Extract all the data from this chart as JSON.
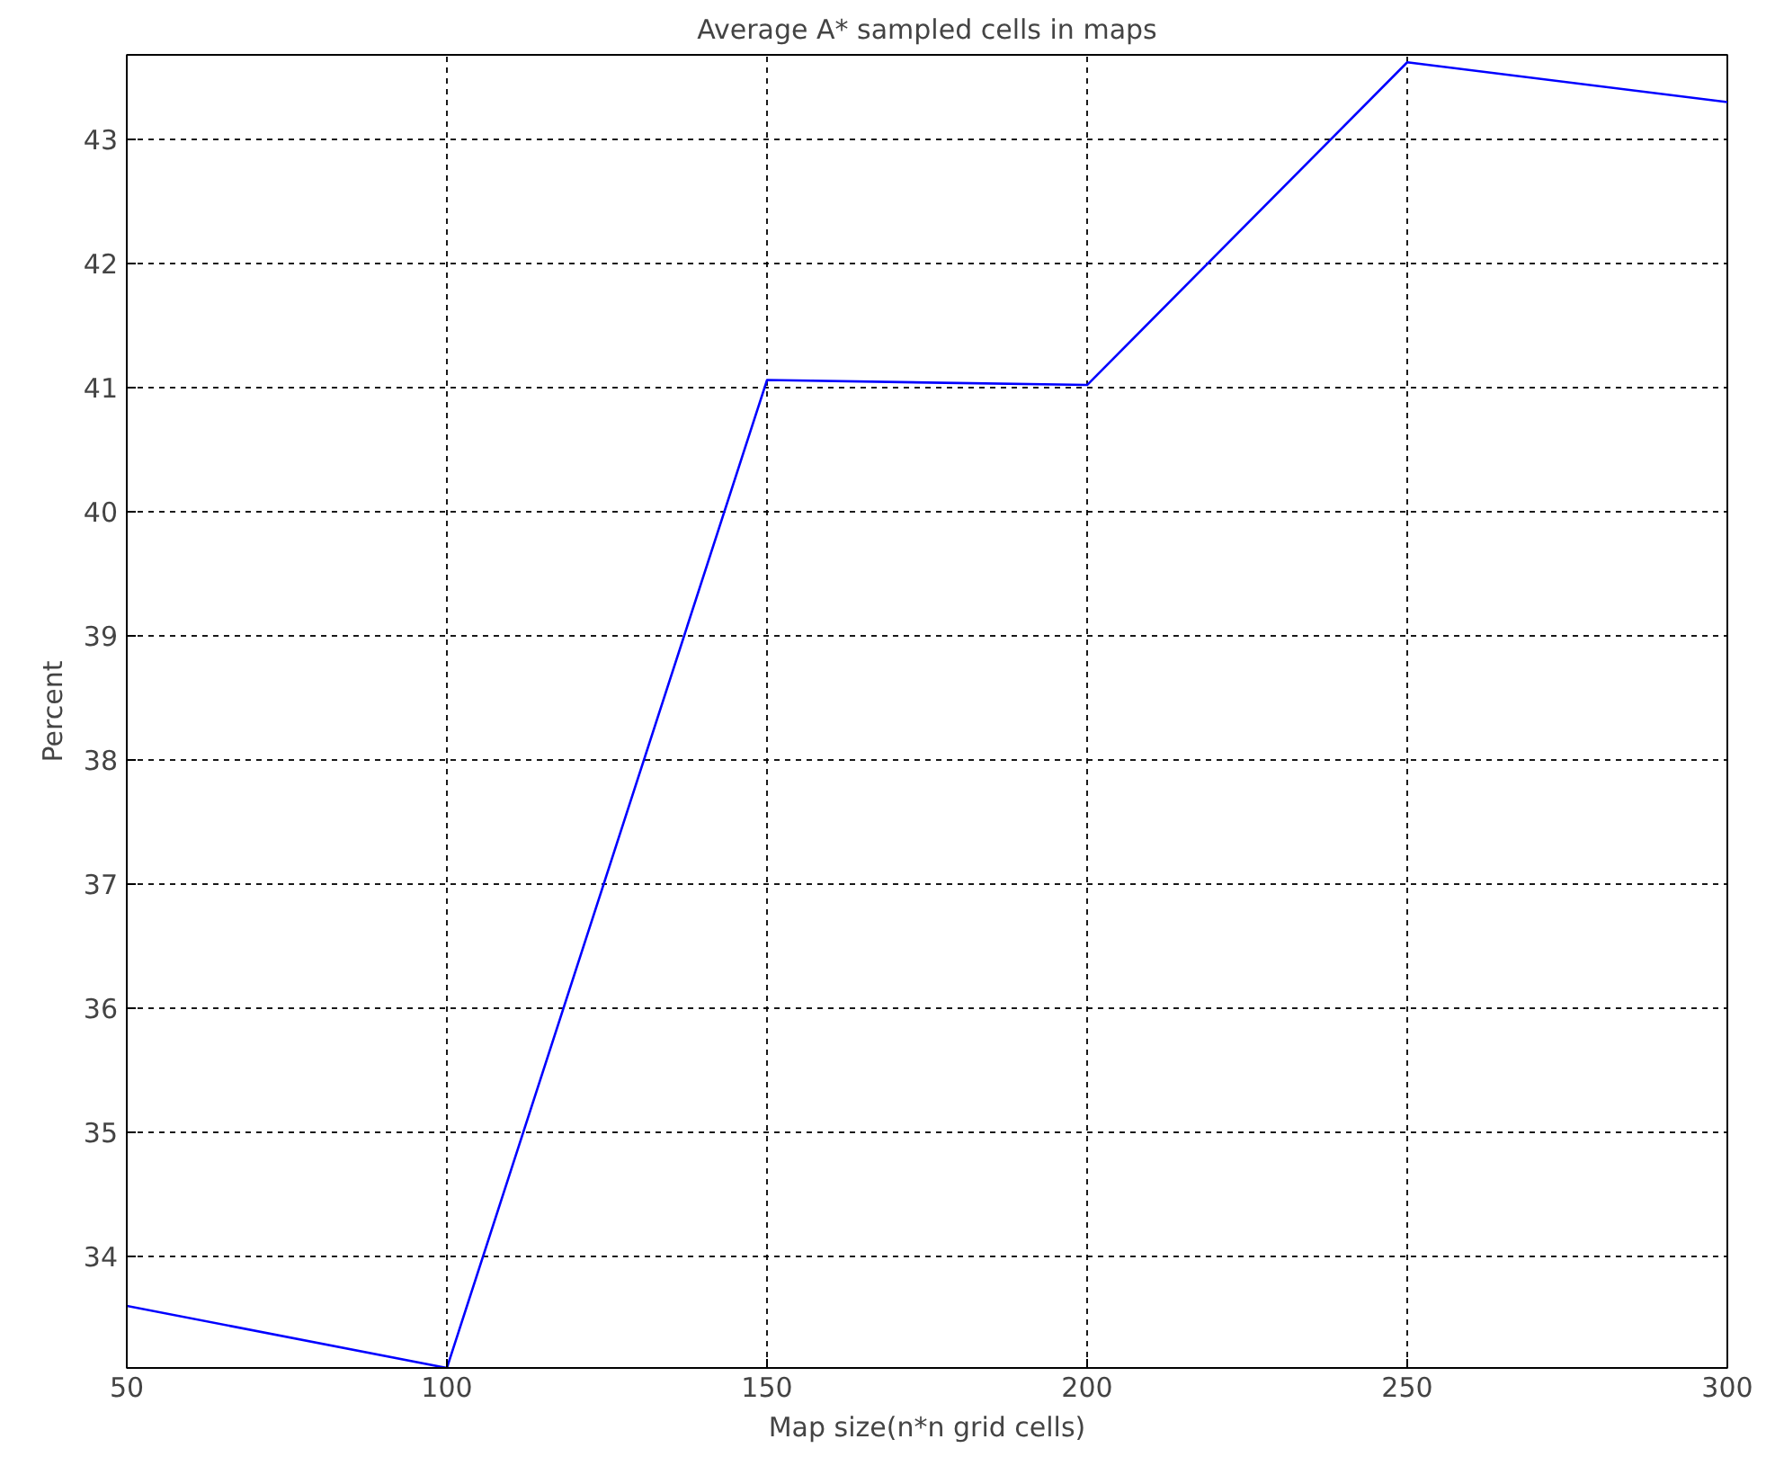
{
  "chart_data": {
    "type": "line",
    "title": "Average A* sampled cells in maps",
    "xlabel": "Map size(n*n grid cells)",
    "ylabel": "Percent",
    "x": [
      50,
      100,
      150,
      200,
      250,
      300
    ],
    "series": [
      {
        "color": "#0000ff",
        "values": [
          33.6,
          33.1,
          41.06,
          41.02,
          43.62,
          43.3
        ]
      }
    ],
    "xlim": [
      50,
      300
    ],
    "xticks": [
      50,
      100,
      150,
      200,
      250,
      300
    ],
    "ylim": [
      33.1,
      43.68
    ],
    "yticks": [
      34,
      35,
      36,
      37,
      38,
      39,
      40,
      41,
      42,
      43
    ],
    "grid": true,
    "marker": "none",
    "line_style": "solid"
  }
}
